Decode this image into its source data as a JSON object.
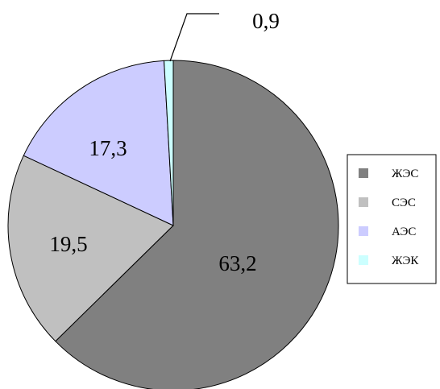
{
  "chart_data": {
    "type": "pie",
    "categories": [
      "ЖЭС",
      "СЭС",
      "АЭС",
      "ЖЭК"
    ],
    "values": [
      63.2,
      19.5,
      17.3,
      0.9
    ],
    "value_labels": [
      "63,2",
      "19,5",
      "17,3",
      "0,9"
    ],
    "colors": [
      "#808080",
      "#c0c0c0",
      "#ccccff",
      "#ccffff"
    ],
    "start_angle_deg": 0,
    "direction": "clockwise",
    "legend": {
      "position": "right",
      "entries": [
        "ЖЭС",
        "СЭС",
        "АЭС",
        "ЖЭК"
      ]
    }
  }
}
